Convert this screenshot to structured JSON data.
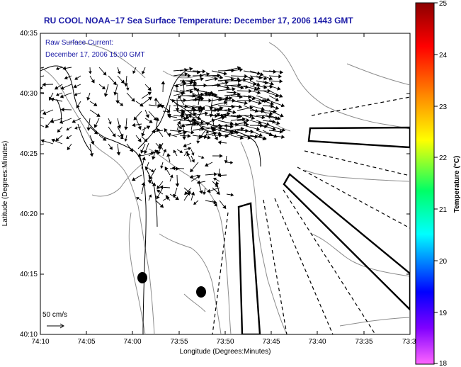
{
  "title": "RU COOL  NOAA−17  Sea Surface Temperature:  December 17, 2006 1443 GMT",
  "annotation": {
    "line1": "Raw Surface Current:",
    "line2": "December 17, 2006 15:00 GMT"
  },
  "scale_label": "50 cm/s",
  "x_axis": {
    "label": "Longitude (Degrees:Minutes)",
    "ticks": [
      "74:10",
      "74:05",
      "74:00",
      "73:55",
      "73:50",
      "73:45",
      "73:40",
      "73:35",
      "73:3"
    ]
  },
  "y_axis": {
    "label": "Latitude (Degrees:Minutes)",
    "ticks": [
      "40:35",
      "40:30",
      "40:25",
      "40:20",
      "40:15",
      "40:10"
    ]
  },
  "colorbar": {
    "label": "Temperature (°C)",
    "ticks": [
      "25",
      "24",
      "23",
      "22",
      "21",
      "20",
      "19",
      "18"
    ],
    "colors": [
      "#8b0000",
      "#ff0000",
      "#ff8c00",
      "#ffff00",
      "#00ff66",
      "#00ffff",
      "#0000ff",
      "#8000ff",
      "#ff66ff"
    ]
  }
}
